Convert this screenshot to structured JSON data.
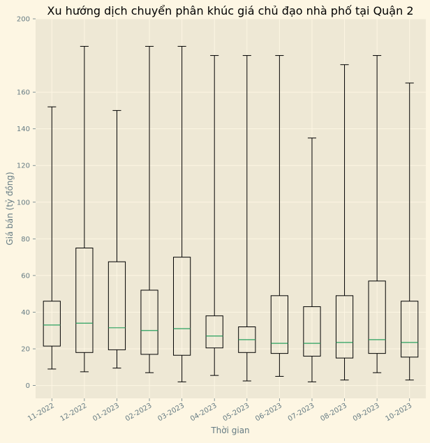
{
  "colors": {
    "figure_background": "#fdf6e3",
    "plot_background": "#eee8d5",
    "grid": "#fdf6e3",
    "box_edge": "#000000",
    "median": "#2aa15f",
    "text": "#657b83",
    "title": "#000000"
  },
  "chart_data": {
    "type": "boxplot",
    "title": "Xu hướng dịch chuyển phân khúc giá chủ đạo nhà phố tại Quận 2",
    "xlabel": "Thời gian",
    "ylabel": "Giá bán (tỷ đồng)",
    "ylim": [
      -7,
      200
    ],
    "yticks": [
      0,
      20,
      40,
      60,
      80,
      100,
      120,
      140,
      160,
      200
    ],
    "grid": true,
    "categories": [
      "11-2022",
      "12-2022",
      "01-2023",
      "02-2023",
      "03-2023",
      "04-2023",
      "05-2023",
      "06-2023",
      "07-2023",
      "08-2023",
      "09-2023",
      "10-2023"
    ],
    "boxes": [
      {
        "label": "11-2022",
        "whisker_low": 9,
        "q1": 21.5,
        "median": 33,
        "q3": 46,
        "whisker_high": 152
      },
      {
        "label": "12-2022",
        "whisker_low": 7.5,
        "q1": 18,
        "median": 34,
        "q3": 75,
        "whisker_high": 185
      },
      {
        "label": "01-2023",
        "whisker_low": 9.5,
        "q1": 19.5,
        "median": 31.5,
        "q3": 67.5,
        "whisker_high": 150
      },
      {
        "label": "02-2023",
        "whisker_low": 7,
        "q1": 17,
        "median": 30,
        "q3": 52,
        "whisker_high": 185
      },
      {
        "label": "03-2023",
        "whisker_low": 2,
        "q1": 16.5,
        "median": 31,
        "q3": 70,
        "whisker_high": 185
      },
      {
        "label": "04-2023",
        "whisker_low": 5.5,
        "q1": 20.5,
        "median": 27,
        "q3": 38,
        "whisker_high": 180
      },
      {
        "label": "05-2023",
        "whisker_low": 2.5,
        "q1": 18,
        "median": 25,
        "q3": 32,
        "whisker_high": 180
      },
      {
        "label": "06-2023",
        "whisker_low": 5,
        "q1": 17.5,
        "median": 23,
        "q3": 49,
        "whisker_high": 180
      },
      {
        "label": "07-2023",
        "whisker_low": 2,
        "q1": 16,
        "median": 23,
        "q3": 43,
        "whisker_high": 135
      },
      {
        "label": "08-2023",
        "whisker_low": 3,
        "q1": 15,
        "median": 23.5,
        "q3": 49,
        "whisker_high": 175
      },
      {
        "label": "09-2023",
        "whisker_low": 7,
        "q1": 17.5,
        "median": 25,
        "q3": 57,
        "whisker_high": 180
      },
      {
        "label": "10-2023",
        "whisker_low": 3,
        "q1": 15.5,
        "median": 23.5,
        "q3": 46,
        "whisker_high": 165
      }
    ]
  }
}
